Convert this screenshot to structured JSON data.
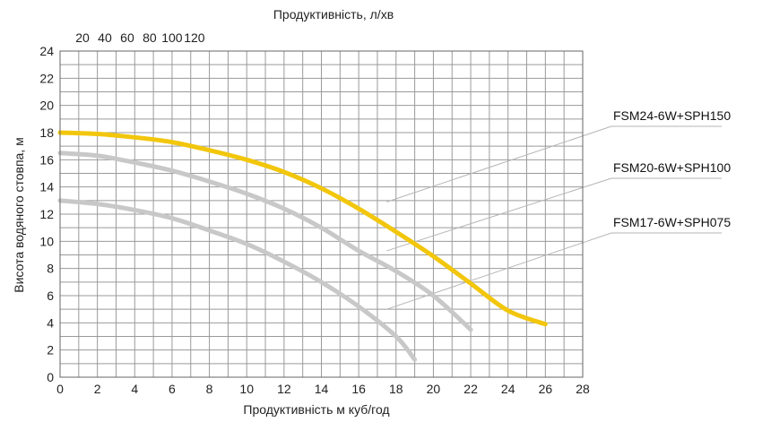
{
  "chart_data": {
    "type": "line",
    "title": "",
    "xlabel": "Продуктивність м куб/год",
    "x2label": "Продуктивність, л/хв",
    "ylabel": "Висота водяного стовпа, м",
    "xlim": [
      0,
      28
    ],
    "ylim": [
      0,
      24
    ],
    "x_ticks": [
      0,
      2,
      4,
      6,
      8,
      10,
      12,
      14,
      16,
      18,
      20,
      22,
      24,
      26,
      28
    ],
    "y_ticks": [
      0,
      2,
      4,
      6,
      8,
      10,
      12,
      14,
      16,
      18,
      20,
      22,
      24
    ],
    "x2_ticks": [
      20,
      40,
      60,
      80,
      100,
      120
    ],
    "grid": true,
    "legend_placement": "right",
    "series": [
      {
        "name": "FSM24-6W+SPH150",
        "color": "#F2C60C",
        "x": [
          0,
          2,
          4,
          6,
          8,
          10,
          12,
          14,
          16,
          18,
          20,
          22,
          24,
          26
        ],
        "y": [
          18,
          17.9,
          17.65,
          17.3,
          16.7,
          16.0,
          15.1,
          13.9,
          12.4,
          10.7,
          8.9,
          6.9,
          4.9,
          3.9
        ],
        "legend_anchor": [
          17.5,
          12.9
        ]
      },
      {
        "name": "FSM20-6W+SPH100",
        "color": "#C8C8C8",
        "x": [
          0,
          2,
          4,
          6,
          8,
          10,
          12,
          14,
          16,
          18,
          20,
          22
        ],
        "y": [
          16.5,
          16.3,
          15.8,
          15.2,
          14.4,
          13.5,
          12.4,
          11.0,
          9.3,
          7.8,
          6.0,
          3.5
        ],
        "legend_anchor": [
          17.5,
          9.3
        ]
      },
      {
        "name": "FSM17-6W+SPH075",
        "color": "#C8C8C8",
        "x": [
          0,
          2,
          4,
          6,
          8,
          10,
          12,
          14,
          16,
          18,
          19
        ],
        "y": [
          13,
          12.75,
          12.3,
          11.7,
          10.8,
          9.8,
          8.5,
          7.0,
          5.2,
          3.0,
          1.3
        ],
        "legend_anchor": [
          17.5,
          5.0
        ]
      }
    ]
  }
}
